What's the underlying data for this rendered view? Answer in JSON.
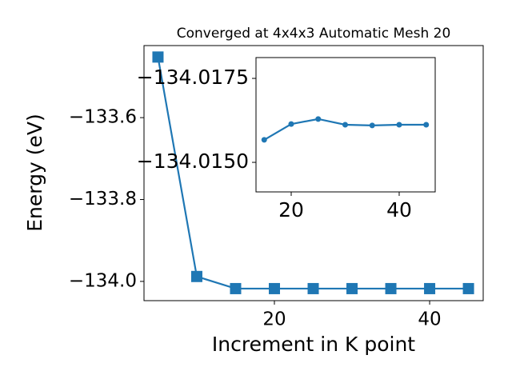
{
  "chart_data": [
    {
      "type": "line",
      "title": "Converged at 4x4x3 Automatic Mesh 20",
      "x_label": "Increment in K point",
      "y_label": "Energy (eV)",
      "x": [
        5,
        10,
        15,
        20,
        25,
        30,
        35,
        40,
        45
      ],
      "values": [
        -133.452,
        -133.988,
        -134.0176,
        -134.0176,
        -134.0176,
        -134.0176,
        -134.0176,
        -134.0176,
        -134.0176
      ],
      "color": "#1f77b4",
      "marker": "square",
      "xlim": [
        3.2,
        46.9
      ],
      "xticks": [
        20,
        40
      ],
      "ylim": [
        -134.047,
        -133.424
      ],
      "yticks": [
        {
          "value": -134.0,
          "label": "−134.0"
        },
        {
          "value": -133.8,
          "label": "−133.8"
        },
        {
          "value": -133.6,
          "label": "−133.6"
        }
      ]
    },
    {
      "type": "line",
      "x": [
        15,
        20,
        25,
        30,
        35,
        40,
        45
      ],
      "values": [
        -134.01567,
        -134.01614,
        -134.01629,
        -134.01612,
        -134.0161,
        -134.01612,
        -134.01612
      ],
      "color": "#1f77b4",
      "marker": "circle",
      "xlim": [
        13.48,
        46.67
      ],
      "xticks": [
        20,
        40
      ],
      "ylim": [
        -134.01412,
        -134.01812
      ],
      "yticks": [
        {
          "value": -134.0175,
          "label": "−134.0175"
        },
        {
          "value": -134.015,
          "label": "−134.0150"
        }
      ]
    }
  ]
}
